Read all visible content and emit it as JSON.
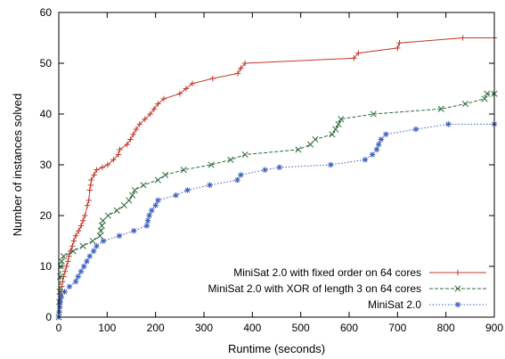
{
  "chart_data": {
    "type": "line",
    "xlabel": "Runtime (seconds)",
    "ylabel": "Number of instances solved",
    "xlim": [
      0,
      900
    ],
    "ylim": [
      0,
      60
    ],
    "xticks": [
      0,
      100,
      200,
      300,
      400,
      500,
      600,
      700,
      800,
      900
    ],
    "yticks": [
      0,
      10,
      20,
      30,
      40,
      50,
      60
    ],
    "grid": false,
    "legend_position": "bottom-right",
    "series": [
      {
        "name": "MiniSat 2.0 with fixed order on 64 cores",
        "color": "#c0392b",
        "dash": "solid",
        "marker": "plus",
        "points": [
          [
            0,
            0
          ],
          [
            1,
            1
          ],
          [
            2,
            2
          ],
          [
            3,
            3
          ],
          [
            4,
            4
          ],
          [
            5,
            5
          ],
          [
            6,
            6
          ],
          [
            8,
            7
          ],
          [
            10,
            8
          ],
          [
            13,
            9
          ],
          [
            16,
            10
          ],
          [
            19,
            11
          ],
          [
            21,
            12
          ],
          [
            24,
            13
          ],
          [
            28,
            14
          ],
          [
            31,
            15
          ],
          [
            35,
            16
          ],
          [
            41,
            17
          ],
          [
            46,
            18
          ],
          [
            50,
            19
          ],
          [
            54,
            20
          ],
          [
            59,
            22
          ],
          [
            62,
            23
          ],
          [
            64,
            25
          ],
          [
            66,
            26
          ],
          [
            67,
            27
          ],
          [
            73,
            28
          ],
          [
            78,
            29
          ],
          [
            90,
            29.5
          ],
          [
            101,
            30
          ],
          [
            113,
            31
          ],
          [
            123,
            32
          ],
          [
            126,
            33
          ],
          [
            141,
            34
          ],
          [
            148,
            35
          ],
          [
            154,
            36
          ],
          [
            160,
            37
          ],
          [
            167,
            38
          ],
          [
            178,
            39
          ],
          [
            189,
            40
          ],
          [
            197,
            41
          ],
          [
            205,
            42
          ],
          [
            217,
            43
          ],
          [
            250,
            44
          ],
          [
            263,
            45
          ],
          [
            276,
            46
          ],
          [
            318,
            47
          ],
          [
            370,
            48
          ],
          [
            376,
            49
          ],
          [
            385,
            50
          ],
          [
            610,
            51
          ],
          [
            619,
            52
          ],
          [
            700,
            53
          ],
          [
            704,
            54
          ],
          [
            835,
            55
          ],
          [
            900,
            55
          ]
        ]
      },
      {
        "name": "MiniSat 2.0 with XOR of length 3 on 64 cores",
        "color": "#2e6b3a",
        "dash": "dashed",
        "marker": "x",
        "points": [
          [
            0,
            0
          ],
          [
            1,
            3
          ],
          [
            2,
            5
          ],
          [
            3,
            8
          ],
          [
            4,
            10
          ],
          [
            6,
            11
          ],
          [
            10,
            12
          ],
          [
            30,
            13
          ],
          [
            50,
            14
          ],
          [
            70,
            15
          ],
          [
            85,
            16
          ],
          [
            87,
            17
          ],
          [
            89,
            18
          ],
          [
            91,
            19
          ],
          [
            102,
            20
          ],
          [
            120,
            21
          ],
          [
            135,
            22
          ],
          [
            145,
            23
          ],
          [
            152,
            24
          ],
          [
            157,
            25
          ],
          [
            175,
            26
          ],
          [
            205,
            27
          ],
          [
            220,
            28
          ],
          [
            258,
            29
          ],
          [
            315,
            30
          ],
          [
            355,
            31
          ],
          [
            385,
            32
          ],
          [
            495,
            33
          ],
          [
            520,
            34
          ],
          [
            530,
            35
          ],
          [
            565,
            36
          ],
          [
            572,
            37
          ],
          [
            578,
            38
          ],
          [
            583,
            39
          ],
          [
            650,
            40
          ],
          [
            790,
            41
          ],
          [
            840,
            42
          ],
          [
            880,
            43
          ],
          [
            885,
            44
          ],
          [
            900,
            44
          ]
        ]
      },
      {
        "name": "MiniSat 2.0",
        "color": "#3b5fc0",
        "dash": "dotted",
        "marker": "star",
        "points": [
          [
            0,
            0
          ],
          [
            1,
            1
          ],
          [
            2,
            2
          ],
          [
            3,
            3
          ],
          [
            5,
            4
          ],
          [
            12,
            5
          ],
          [
            22,
            6
          ],
          [
            35,
            7
          ],
          [
            40,
            8
          ],
          [
            46,
            9
          ],
          [
            52,
            10
          ],
          [
            58,
            11
          ],
          [
            64,
            12
          ],
          [
            72,
            13
          ],
          [
            78,
            14
          ],
          [
            92,
            15
          ],
          [
            125,
            16
          ],
          [
            155,
            17
          ],
          [
            182,
            18
          ],
          [
            184,
            19
          ],
          [
            187,
            20
          ],
          [
            192,
            21
          ],
          [
            200,
            22
          ],
          [
            205,
            23
          ],
          [
            242,
            24
          ],
          [
            266,
            25
          ],
          [
            312,
            26
          ],
          [
            369,
            27
          ],
          [
            376,
            28
          ],
          [
            426,
            29
          ],
          [
            456,
            29.5
          ],
          [
            562,
            30
          ],
          [
            633,
            31
          ],
          [
            648,
            32
          ],
          [
            657,
            33
          ],
          [
            661,
            34
          ],
          [
            666,
            35
          ],
          [
            676,
            36
          ],
          [
            738,
            37
          ],
          [
            805,
            38
          ],
          [
            900,
            38
          ]
        ]
      }
    ]
  }
}
